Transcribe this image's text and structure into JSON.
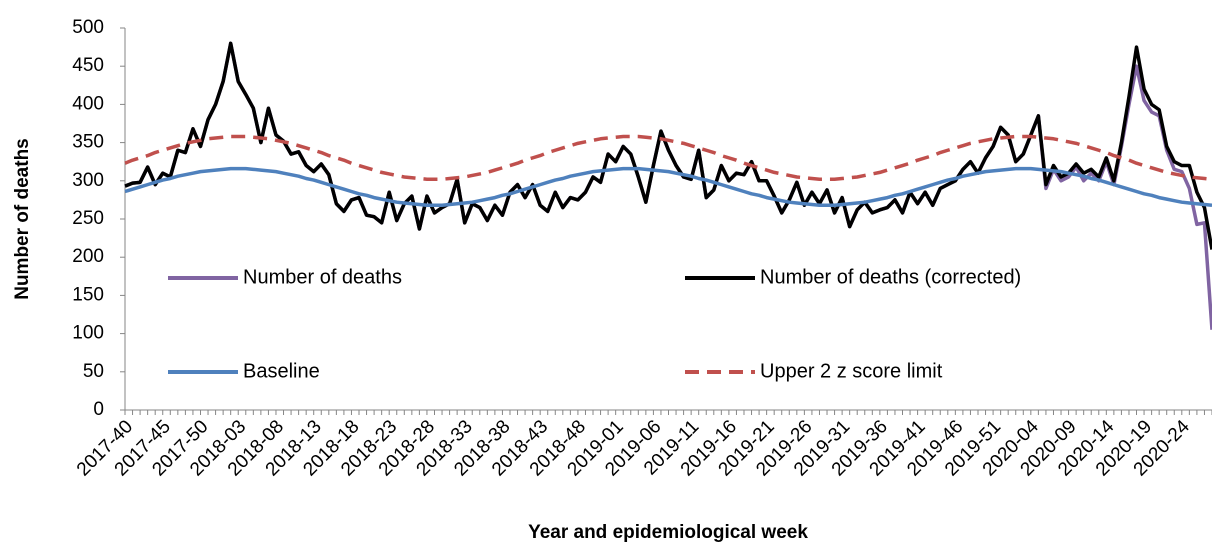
{
  "chart_data": {
    "type": "line",
    "x_axis_label": "Year and epidemiological week",
    "y_axis_label": "Number of deaths",
    "ylim": [
      0,
      500
    ],
    "yticks": [
      0,
      50,
      100,
      150,
      200,
      250,
      300,
      350,
      400,
      450,
      500
    ],
    "grid": false,
    "legend_position": "center",
    "categories": [
      "2017-40",
      null,
      null,
      null,
      null,
      "2017-45",
      null,
      null,
      null,
      null,
      "2017-50",
      null,
      null,
      null,
      null,
      "2018-03",
      null,
      null,
      null,
      null,
      "2018-08",
      null,
      null,
      null,
      null,
      "2018-13",
      null,
      null,
      null,
      null,
      "2018-18",
      null,
      null,
      null,
      null,
      "2018-23",
      null,
      null,
      null,
      null,
      "2018-28",
      null,
      null,
      null,
      null,
      "2018-33",
      null,
      null,
      null,
      null,
      "2018-38",
      null,
      null,
      null,
      null,
      "2018-43",
      null,
      null,
      null,
      null,
      "2018-48",
      null,
      null,
      null,
      null,
      "2019-01",
      null,
      null,
      null,
      null,
      "2019-06",
      null,
      null,
      null,
      null,
      "2019-11",
      null,
      null,
      null,
      null,
      "2019-16",
      null,
      null,
      null,
      null,
      "2019-21",
      null,
      null,
      null,
      null,
      "2019-26",
      null,
      null,
      null,
      null,
      "2019-31",
      null,
      null,
      null,
      null,
      "2019-36",
      null,
      null,
      null,
      null,
      "2019-41",
      null,
      null,
      null,
      null,
      "2019-46",
      null,
      null,
      null,
      null,
      "2019-51",
      null,
      null,
      null,
      null,
      "2020-04",
      null,
      null,
      null,
      null,
      "2020-09",
      null,
      null,
      null,
      null,
      "2020-14",
      null,
      null,
      null,
      null,
      "2020-19",
      null,
      null,
      null,
      null,
      "2020-24",
      null,
      null,
      null,
      null
    ],
    "series": [
      {
        "name": "Number of deaths",
        "color": "#8064a2",
        "dashed": false,
        "values": [
          293,
          297,
          298,
          318,
          295,
          310,
          305,
          340,
          337,
          368,
          345,
          380,
          400,
          430,
          480,
          430,
          413,
          395,
          350,
          395,
          360,
          352,
          335,
          338,
          320,
          312,
          322,
          308,
          270,
          260,
          275,
          278,
          255,
          253,
          245,
          285,
          248,
          270,
          280,
          237,
          280,
          258,
          265,
          270,
          302,
          245,
          270,
          265,
          248,
          268,
          255,
          285,
          295,
          278,
          295,
          268,
          260,
          285,
          265,
          278,
          275,
          285,
          305,
          298,
          335,
          325,
          345,
          335,
          305,
          272,
          320,
          365,
          340,
          320,
          305,
          302,
          340,
          278,
          288,
          320,
          300,
          310,
          308,
          325,
          300,
          300,
          280,
          258,
          275,
          298,
          268,
          285,
          270,
          288,
          258,
          278,
          240,
          262,
          272,
          258,
          262,
          265,
          275,
          258,
          285,
          270,
          285,
          268,
          290,
          295,
          300,
          315,
          325,
          310,
          330,
          345,
          370,
          360,
          325,
          335,
          360,
          385,
          290,
          315,
          300,
          305,
          318,
          300,
          310,
          300,
          325,
          295,
          345,
          400,
          450,
          405,
          390,
          385,
          340,
          315,
          312,
          290,
          243,
          245,
          105
        ]
      },
      {
        "name": "Number of deaths (corrected)",
        "color": "#000000",
        "dashed": false,
        "values": [
          293,
          297,
          298,
          318,
          295,
          310,
          305,
          340,
          337,
          368,
          345,
          380,
          400,
          430,
          480,
          430,
          413,
          395,
          350,
          395,
          360,
          352,
          335,
          338,
          320,
          312,
          322,
          308,
          270,
          260,
          275,
          278,
          255,
          253,
          245,
          285,
          248,
          270,
          280,
          237,
          280,
          258,
          265,
          270,
          302,
          245,
          270,
          265,
          248,
          268,
          255,
          285,
          295,
          278,
          295,
          268,
          260,
          285,
          265,
          278,
          275,
          285,
          305,
          298,
          335,
          325,
          345,
          335,
          305,
          272,
          320,
          365,
          340,
          320,
          305,
          302,
          340,
          278,
          288,
          320,
          300,
          310,
          308,
          325,
          300,
          300,
          280,
          258,
          275,
          298,
          268,
          285,
          270,
          288,
          258,
          278,
          240,
          262,
          272,
          258,
          262,
          265,
          275,
          258,
          285,
          270,
          285,
          268,
          290,
          295,
          300,
          315,
          325,
          310,
          330,
          345,
          370,
          360,
          325,
          335,
          360,
          385,
          295,
          320,
          305,
          310,
          322,
          310,
          315,
          305,
          330,
          300,
          350,
          410,
          475,
          420,
          400,
          393,
          345,
          325,
          320,
          320,
          285,
          265,
          210
        ]
      },
      {
        "name": "Baseline",
        "color": "#4f81bd",
        "dashed": false,
        "values": [
          286,
          289,
          292,
          295,
          298,
          301,
          303,
          306,
          308,
          310,
          312,
          313,
          314,
          315,
          316,
          316,
          316,
          315,
          314,
          313,
          312,
          310,
          308,
          306,
          303,
          301,
          298,
          295,
          292,
          289,
          286,
          283,
          281,
          278,
          276,
          274,
          272,
          271,
          270,
          269,
          268,
          268,
          268,
          269,
          270,
          271,
          272,
          274,
          276,
          278,
          281,
          283,
          286,
          289,
          292,
          295,
          298,
          301,
          303,
          306,
          308,
          310,
          312,
          313,
          314,
          315,
          316,
          316,
          316,
          315,
          314,
          313,
          312,
          310,
          308,
          306,
          303,
          301,
          298,
          295,
          292,
          289,
          286,
          283,
          281,
          278,
          276,
          274,
          272,
          271,
          270,
          269,
          268,
          268,
          268,
          269,
          270,
          271,
          272,
          274,
          276,
          278,
          281,
          283,
          286,
          289,
          292,
          295,
          298,
          301,
          303,
          306,
          308,
          310,
          312,
          313,
          314,
          315,
          316,
          316,
          316,
          315,
          314,
          313,
          312,
          310,
          308,
          306,
          303,
          301,
          298,
          295,
          292,
          289,
          286,
          283,
          281,
          278,
          276,
          274,
          272,
          271,
          270,
          269,
          268
        ]
      },
      {
        "name": "Upper 2 z score limit",
        "color": "#c0504d",
        "dashed": true,
        "values": [
          323,
          327,
          330,
          333,
          337,
          340,
          343,
          346,
          349,
          351,
          353,
          355,
          356,
          357,
          358,
          358,
          358,
          357,
          356,
          355,
          353,
          351,
          349,
          346,
          343,
          340,
          337,
          333,
          330,
          327,
          323,
          320,
          317,
          314,
          311,
          309,
          307,
          305,
          304,
          303,
          302,
          302,
          302,
          303,
          304,
          305,
          307,
          309,
          311,
          314,
          317,
          320,
          323,
          327,
          330,
          333,
          337,
          340,
          343,
          346,
          349,
          351,
          353,
          355,
          356,
          357,
          358,
          358,
          358,
          357,
          356,
          355,
          353,
          351,
          349,
          346,
          343,
          340,
          337,
          333,
          330,
          327,
          323,
          320,
          317,
          314,
          311,
          309,
          307,
          305,
          304,
          303,
          302,
          302,
          302,
          303,
          304,
          305,
          307,
          309,
          311,
          314,
          317,
          320,
          323,
          327,
          330,
          333,
          337,
          340,
          343,
          346,
          349,
          351,
          353,
          355,
          356,
          357,
          358,
          358,
          358,
          357,
          356,
          355,
          353,
          351,
          349,
          346,
          343,
          340,
          337,
          333,
          330,
          327,
          323,
          320,
          317,
          314,
          311,
          309,
          307,
          305,
          304,
          303,
          302
        ]
      }
    ]
  }
}
